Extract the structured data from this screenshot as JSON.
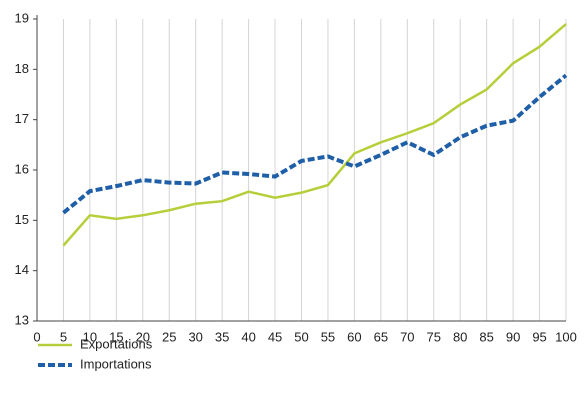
{
  "chart_data": {
    "type": "line",
    "x": [
      5,
      10,
      15,
      20,
      25,
      30,
      35,
      40,
      45,
      50,
      55,
      60,
      65,
      70,
      75,
      80,
      85,
      90,
      95,
      100
    ],
    "series": [
      {
        "name": "Exportations",
        "color": "#b5cf3b",
        "dash": false,
        "values": [
          14.5,
          15.1,
          15.03,
          15.1,
          15.2,
          15.33,
          15.38,
          15.57,
          15.45,
          15.55,
          15.7,
          16.33,
          16.55,
          16.73,
          16.93,
          17.3,
          17.6,
          18.12,
          18.45,
          18.9
        ]
      },
      {
        "name": "Importations",
        "color": "#1f5fa8",
        "dash": true,
        "values": [
          15.15,
          15.58,
          15.68,
          15.8,
          15.75,
          15.73,
          15.95,
          15.92,
          15.87,
          16.18,
          16.27,
          16.07,
          16.3,
          16.55,
          16.3,
          16.65,
          16.88,
          16.98,
          17.45,
          17.88
        ]
      }
    ],
    "xlim": [
      0,
      100
    ],
    "xticks": [
      0,
      5,
      10,
      15,
      20,
      25,
      30,
      35,
      40,
      45,
      50,
      55,
      60,
      65,
      70,
      75,
      80,
      85,
      90,
      95,
      100
    ],
    "ylim": [
      13,
      19
    ],
    "yticks": [
      13,
      14,
      15,
      16,
      17,
      18,
      19
    ],
    "grid": "x",
    "legend": "bottom-left"
  }
}
